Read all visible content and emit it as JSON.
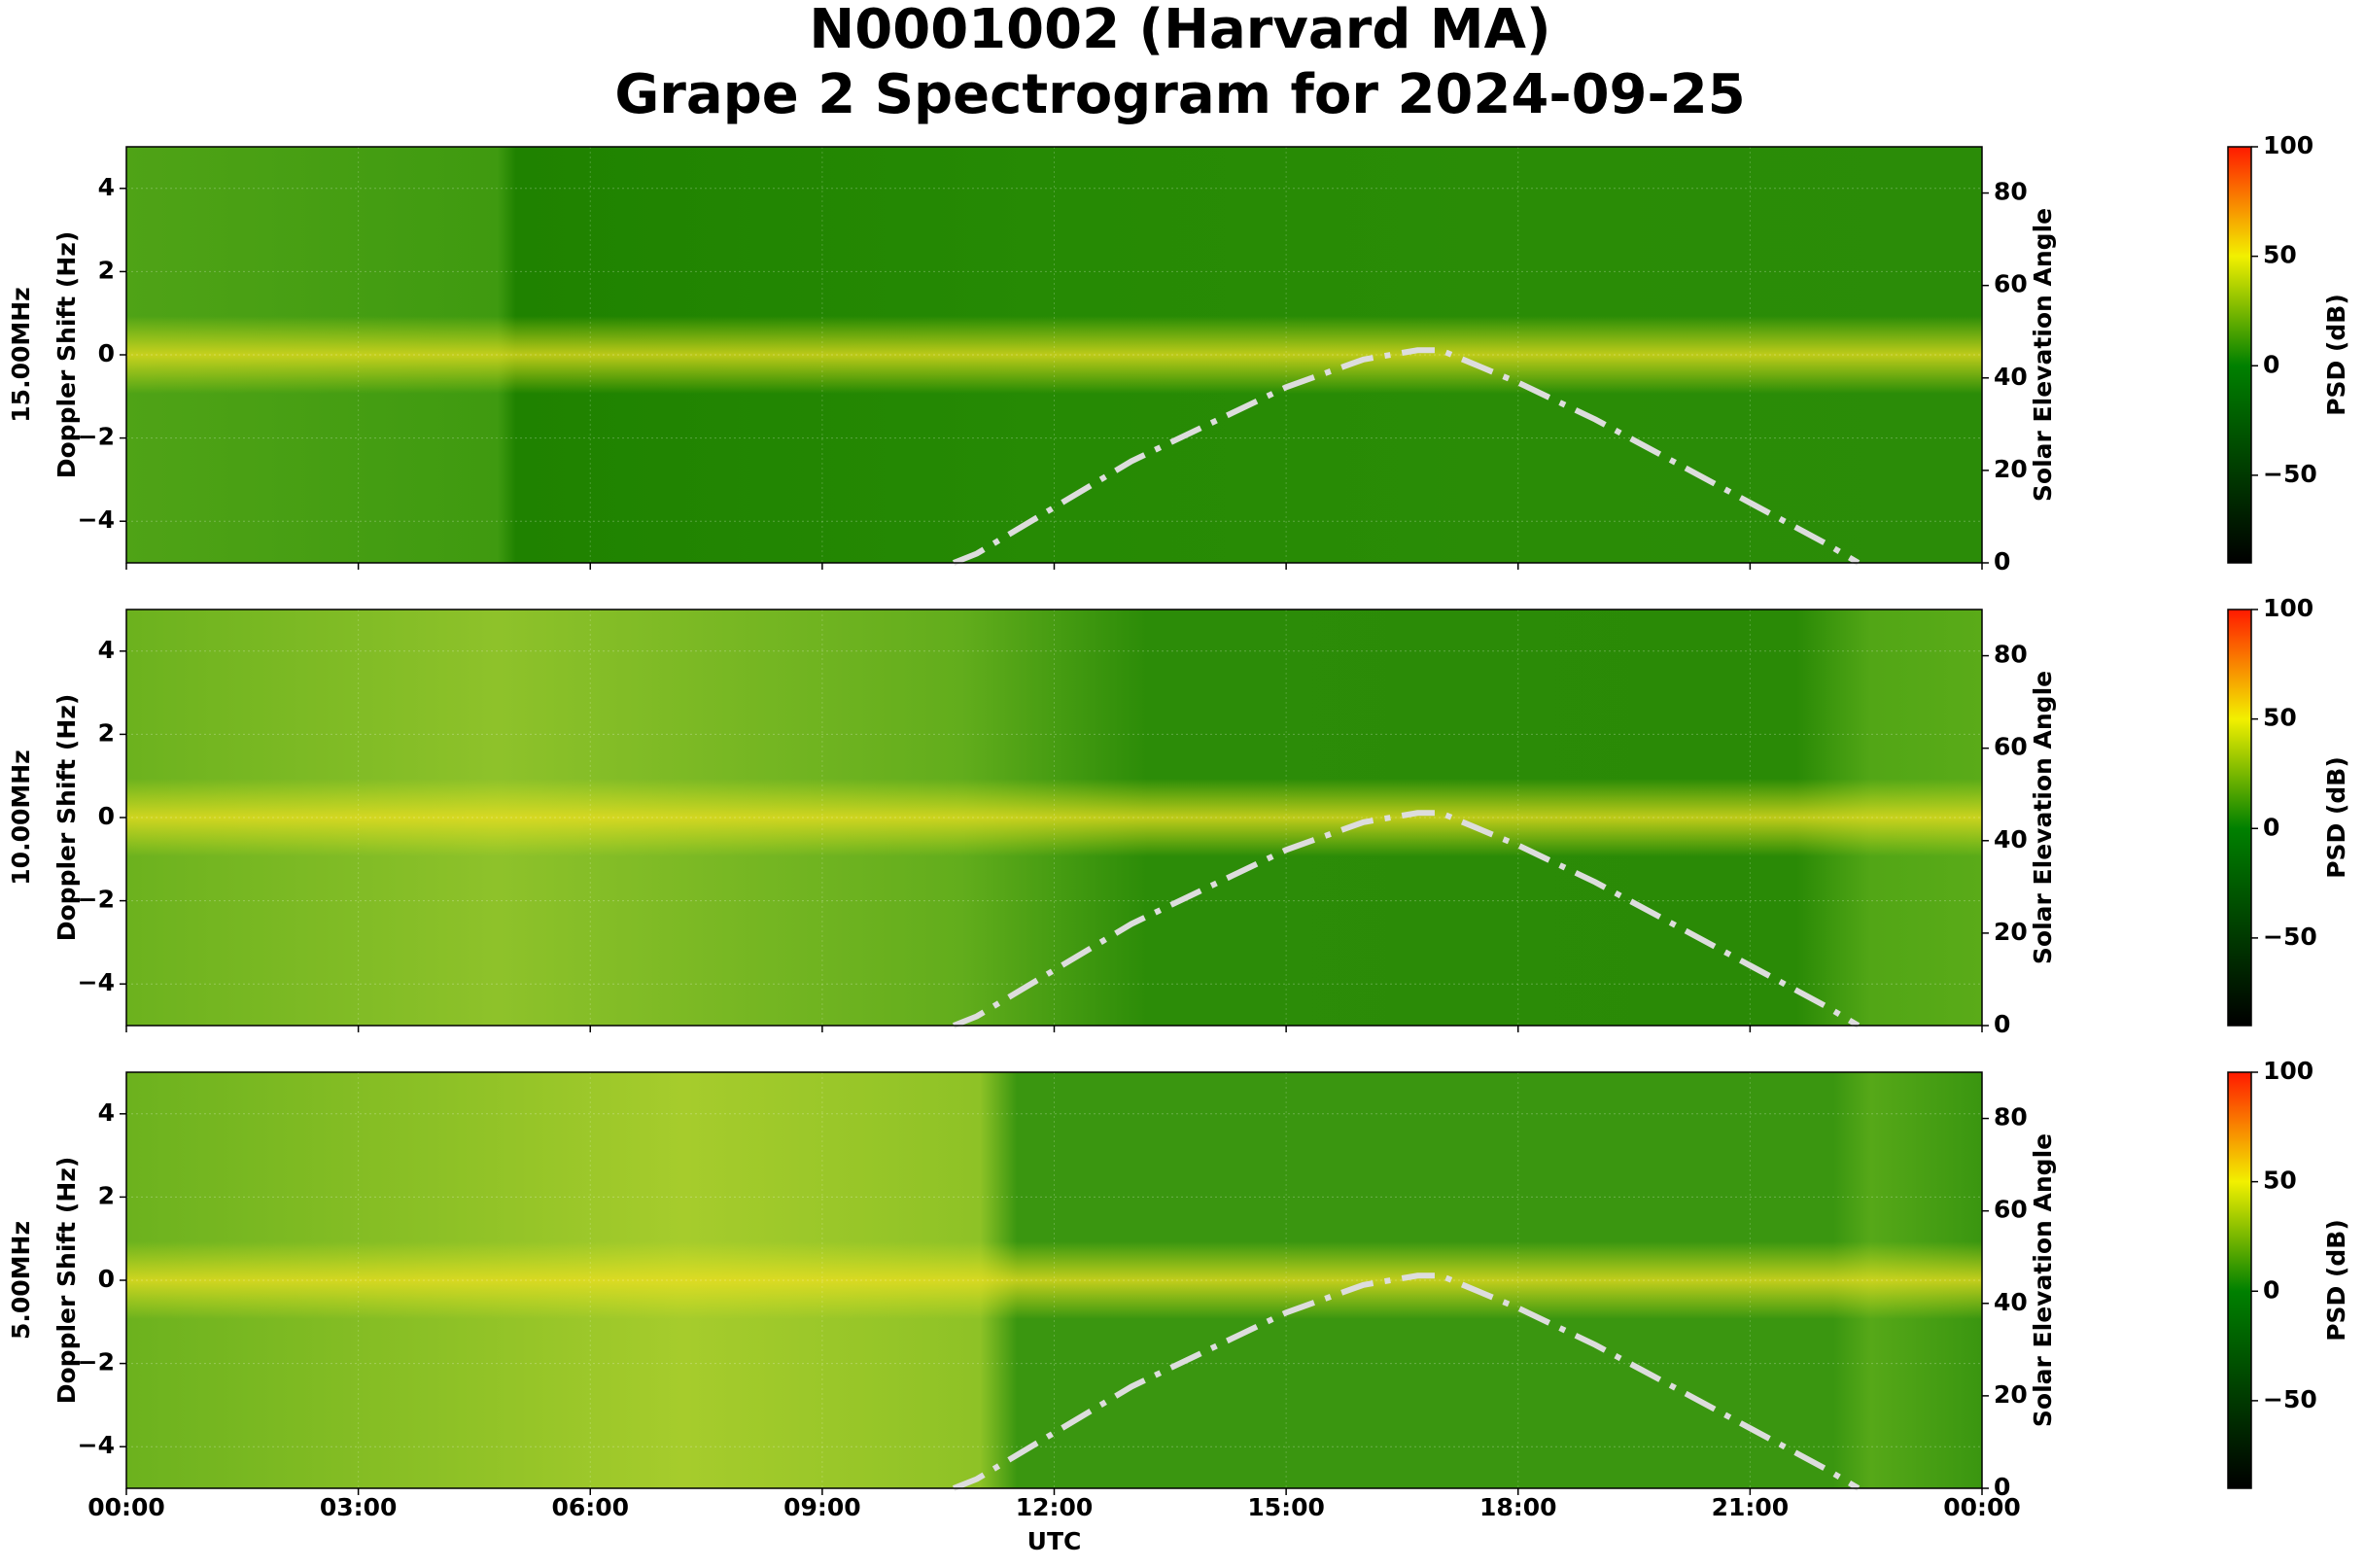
{
  "chart_data": [
    {
      "type": "spectrogram",
      "title": "N0001002 (Harvard MA)",
      "subtitle": "Grape 2 Spectrogram for 2024-09-25",
      "ylabel": [
        "15.00MHz",
        "Doppler Shift (Hz)"
      ],
      "y2label": "Solar Elevation Angle",
      "xlim": [
        0,
        24
      ],
      "ylim": [
        -5,
        5
      ],
      "yticks": [
        {
          "value": -4,
          "label": "−4"
        },
        {
          "value": -2,
          "label": "−2"
        },
        0,
        2,
        4
      ],
      "y2lim": [
        0,
        90
      ],
      "y2ticks": [
        0,
        20,
        40,
        60,
        80
      ],
      "series": [
        {
          "axis": "y2",
          "color": "#dddddd",
          "x": [
            10.7,
            11,
            12,
            13,
            14,
            15,
            16,
            16.7,
            17,
            18,
            19,
            20,
            21,
            22,
            22.4
          ],
          "values": [
            0,
            2,
            12,
            22,
            30,
            38,
            44,
            46,
            46,
            39,
            31,
            22,
            13,
            4,
            0
          ]
        }
      ],
      "colorbar": {
        "label": "PSD (dB)",
        "lim": [
          -90,
          100
        ],
        "ticks": [
          {
            "value": -50,
            "label": "−50"
          },
          0,
          50,
          100
        ]
      }
    },
    {
      "type": "spectrogram",
      "ylabel": [
        "10.00MHz",
        "Doppler Shift (Hz)"
      ],
      "y2label": "Solar Elevation Angle",
      "xlim": [
        0,
        24
      ],
      "ylim": [
        -5,
        5
      ],
      "yticks": [
        {
          "value": -4,
          "label": "−4"
        },
        {
          "value": -2,
          "label": "−2"
        },
        0,
        2,
        4
      ],
      "y2lim": [
        0,
        90
      ],
      "y2ticks": [
        0,
        20,
        40,
        60,
        80
      ],
      "series": [
        {
          "axis": "y2",
          "color": "#dddddd",
          "x": [
            10.7,
            11,
            12,
            13,
            14,
            15,
            16,
            16.7,
            17,
            18,
            19,
            20,
            21,
            22,
            22.4
          ],
          "values": [
            0,
            2,
            12,
            22,
            30,
            38,
            44,
            46,
            46,
            39,
            31,
            22,
            13,
            4,
            0
          ]
        }
      ],
      "colorbar": {
        "label": "PSD (dB)",
        "lim": [
          -90,
          100
        ],
        "ticks": [
          {
            "value": -50,
            "label": "−50"
          },
          0,
          50,
          100
        ]
      }
    },
    {
      "type": "spectrogram",
      "ylabel": [
        "5.00MHz",
        "Doppler Shift (Hz)"
      ],
      "y2label": "Solar Elevation Angle",
      "xlabel": "UTC",
      "xlim": [
        0,
        24
      ],
      "xticks": [
        {
          "value": 0,
          "label": "00:00"
        },
        {
          "value": 3,
          "label": "03:00"
        },
        {
          "value": 6,
          "label": "06:00"
        },
        {
          "value": 9,
          "label": "09:00"
        },
        {
          "value": 12,
          "label": "12:00"
        },
        {
          "value": 15,
          "label": "15:00"
        },
        {
          "value": 18,
          "label": "18:00"
        },
        {
          "value": 21,
          "label": "21:00"
        },
        {
          "value": 24,
          "label": "00:00"
        }
      ],
      "ylim": [
        -5,
        5
      ],
      "yticks": [
        {
          "value": -4,
          "label": "−4"
        },
        {
          "value": -2,
          "label": "−2"
        },
        0,
        2,
        4
      ],
      "y2lim": [
        0,
        90
      ],
      "y2ticks": [
        0,
        20,
        40,
        60,
        80
      ],
      "series": [
        {
          "axis": "y2",
          "color": "#dddddd",
          "x": [
            10.7,
            11,
            12,
            13,
            14,
            15,
            16,
            16.7,
            17,
            18,
            19,
            20,
            21,
            22,
            22.4
          ],
          "values": [
            0,
            2,
            12,
            22,
            30,
            38,
            44,
            46,
            46,
            39,
            31,
            22,
            13,
            4,
            0
          ]
        }
      ],
      "colorbar": {
        "label": "PSD (dB)",
        "lim": [
          -90,
          100
        ],
        "ticks": [
          {
            "value": -50,
            "label": "−50"
          },
          0,
          50,
          100
        ]
      }
    }
  ]
}
